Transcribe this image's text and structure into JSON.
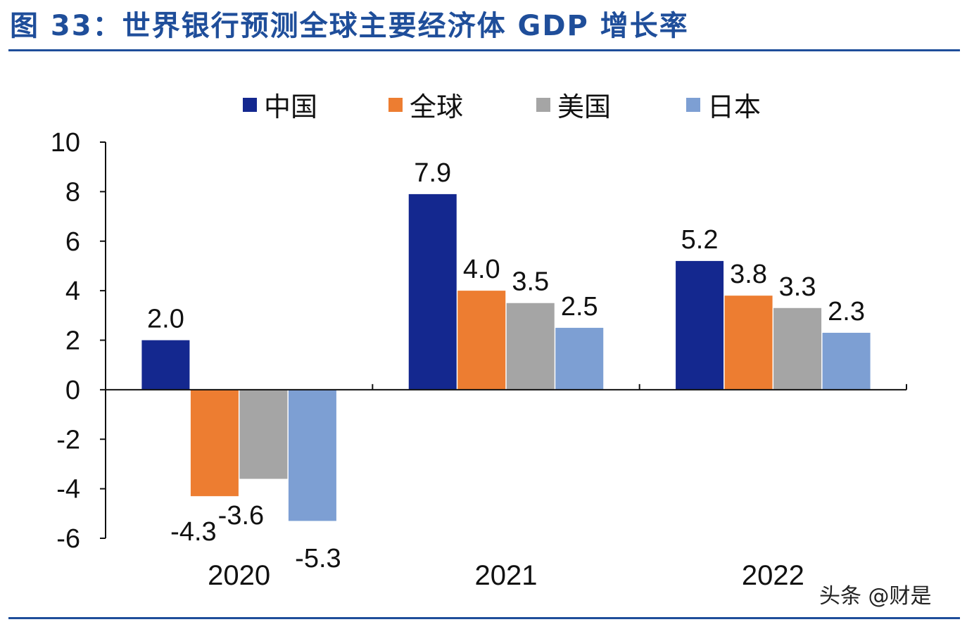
{
  "header": {
    "title": "图 33：世界银行预测全球主要经济体 GDP 增长率"
  },
  "watermark": "头条 @财是",
  "colors": {
    "title": "#1f4e9a",
    "rule": "#1f4e9a",
    "axis": "#111111"
  },
  "chart_data": {
    "type": "bar",
    "title": "世界银行预测全球主要经济体 GDP 增长率",
    "xlabel": "",
    "ylabel": "",
    "categories": [
      "2020",
      "2021",
      "2022"
    ],
    "series": [
      {
        "name": "中国",
        "color": "#14288f",
        "values": [
          2.0,
          7.9,
          5.2
        ],
        "labels": [
          "2.0",
          "7.9",
          "5.2"
        ]
      },
      {
        "name": "全球",
        "color": "#ed7d31",
        "values": [
          -4.3,
          4.0,
          3.8
        ],
        "labels": [
          "-4.3",
          "4.0",
          "3.8"
        ]
      },
      {
        "name": "美国",
        "color": "#a5a5a5",
        "values": [
          -3.6,
          3.5,
          3.3
        ],
        "labels": [
          "-3.6",
          "3.5",
          "3.3"
        ]
      },
      {
        "name": "日本",
        "color": "#7d9fd3",
        "values": [
          -5.3,
          2.5,
          2.3
        ],
        "labels": [
          "-5.3",
          "2.5",
          "2.3"
        ]
      }
    ],
    "ylim": [
      -6,
      10
    ],
    "yticks": [
      10,
      8,
      6,
      4,
      2,
      0,
      -2,
      -4,
      -6
    ],
    "grid": false,
    "legend_position": "top"
  }
}
